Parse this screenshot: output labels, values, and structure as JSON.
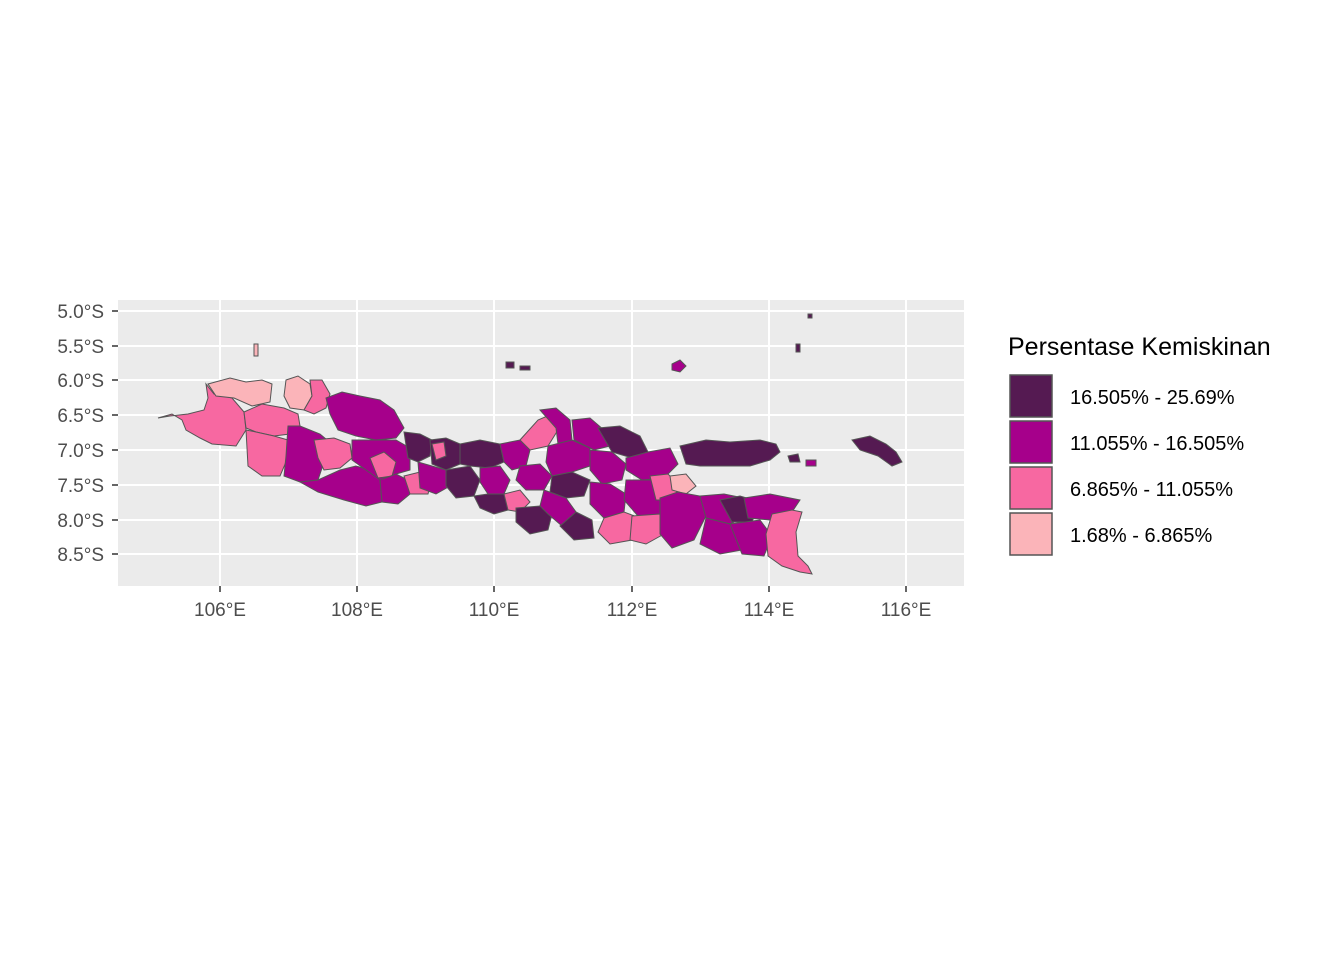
{
  "map": {
    "lat_ticks": [
      "5.0°S",
      "5.5°S",
      "6.0°S",
      "6.5°S",
      "7.0°S",
      "7.5°S",
      "8.0°S",
      "8.5°S"
    ],
    "lon_ticks": [
      "106°E",
      "108°E",
      "110°E",
      "112°E",
      "114°E",
      "116°E"
    ],
    "panel_background": "#ebebeb",
    "grid_color": "#ffffff",
    "border_color": "#555555"
  },
  "legend": {
    "title": "Persentase Kemiskinan",
    "items": [
      {
        "label": "16.505% - 25.69%",
        "color": "#551a52"
      },
      {
        "label": "11.055% - 16.505%",
        "color": "#a6008b"
      },
      {
        "label": "6.865% - 11.055%",
        "color": "#f768a1"
      },
      {
        "label": "1.68% - 6.865%",
        "color": "#fbb4b9"
      }
    ]
  }
}
